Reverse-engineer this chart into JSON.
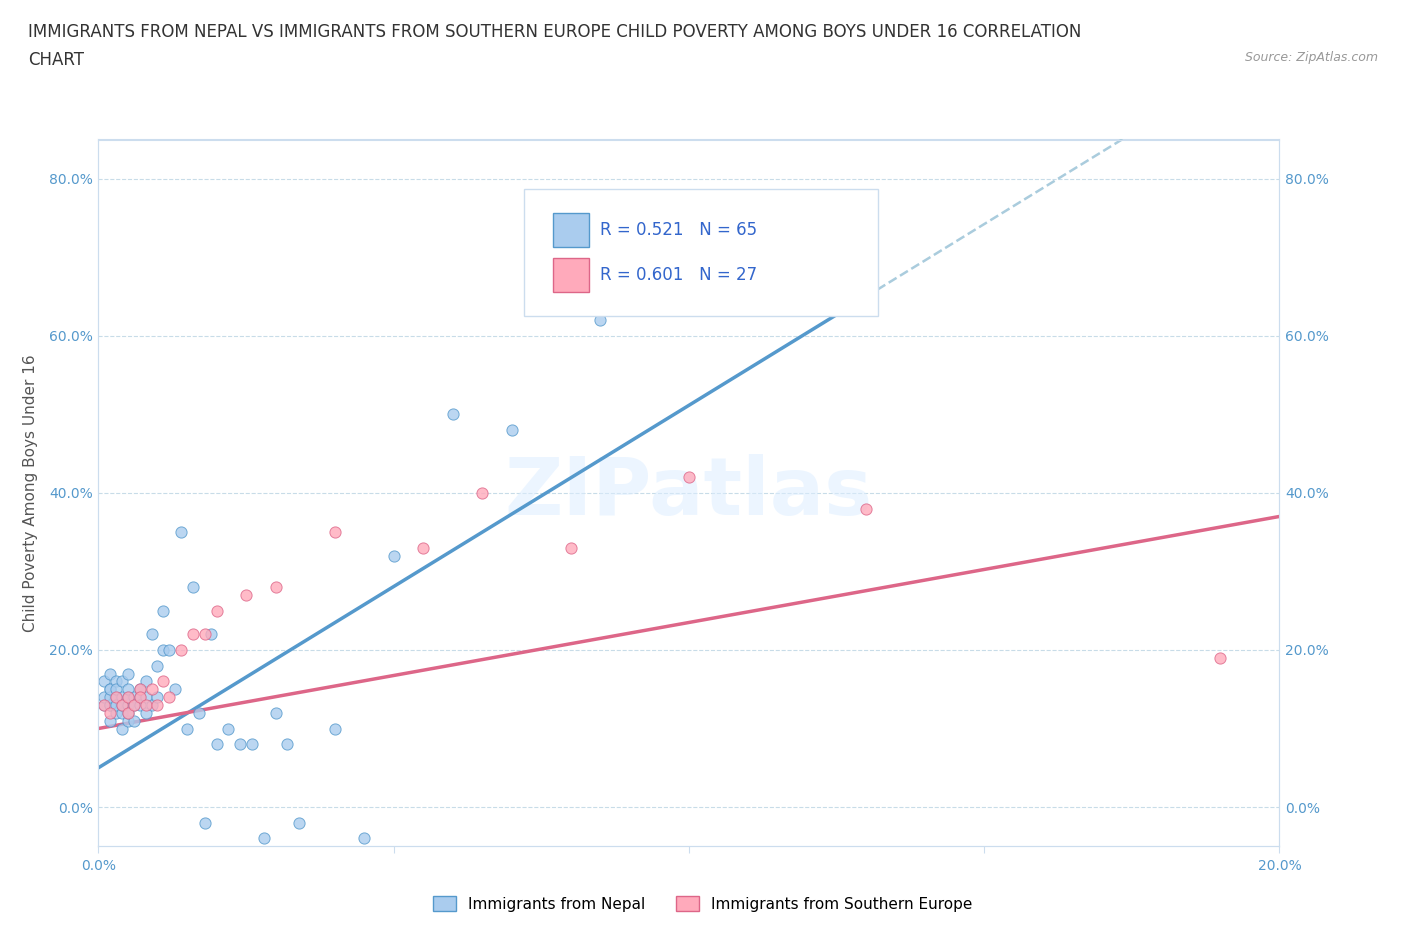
{
  "title_line1": "IMMIGRANTS FROM NEPAL VS IMMIGRANTS FROM SOUTHERN EUROPE CHILD POVERTY AMONG BOYS UNDER 16 CORRELATION",
  "title_line2": "CHART",
  "source_text": "Source: ZipAtlas.com",
  "ylabel": "Child Poverty Among Boys Under 16",
  "xlabel_nepal": "Immigrants from Nepal",
  "xlabel_se": "Immigrants from Southern Europe",
  "xlim": [
    0.0,
    0.2
  ],
  "ylim": [
    -0.05,
    0.85
  ],
  "nepal_color": "#aaccee",
  "nepal_line_color": "#5599cc",
  "se_color": "#ffaabb",
  "se_line_color": "#dd6688",
  "trendline_dashed_color": "#aaccdd",
  "r_nepal": 0.521,
  "n_nepal": 65,
  "r_se": 0.601,
  "n_se": 27,
  "nepal_x": [
    0.001,
    0.001,
    0.001,
    0.002,
    0.002,
    0.002,
    0.002,
    0.002,
    0.002,
    0.002,
    0.003,
    0.003,
    0.003,
    0.003,
    0.003,
    0.004,
    0.004,
    0.004,
    0.004,
    0.004,
    0.005,
    0.005,
    0.005,
    0.005,
    0.005,
    0.005,
    0.006,
    0.006,
    0.006,
    0.007,
    0.007,
    0.007,
    0.008,
    0.008,
    0.008,
    0.009,
    0.009,
    0.01,
    0.01,
    0.011,
    0.011,
    0.012,
    0.013,
    0.014,
    0.015,
    0.016,
    0.017,
    0.018,
    0.019,
    0.02,
    0.022,
    0.024,
    0.026,
    0.028,
    0.03,
    0.032,
    0.034,
    0.04,
    0.045,
    0.05,
    0.06,
    0.07,
    0.085,
    0.1,
    0.125
  ],
  "nepal_y": [
    0.13,
    0.14,
    0.16,
    0.11,
    0.13,
    0.15,
    0.17,
    0.13,
    0.14,
    0.15,
    0.12,
    0.14,
    0.16,
    0.13,
    0.15,
    0.1,
    0.12,
    0.14,
    0.13,
    0.16,
    0.11,
    0.13,
    0.14,
    0.15,
    0.17,
    0.12,
    0.14,
    0.13,
    0.11,
    0.14,
    0.13,
    0.15,
    0.12,
    0.14,
    0.16,
    0.13,
    0.22,
    0.14,
    0.18,
    0.2,
    0.25,
    0.2,
    0.15,
    0.35,
    0.1,
    0.28,
    0.12,
    -0.02,
    0.22,
    0.08,
    0.1,
    0.08,
    0.08,
    -0.04,
    0.12,
    0.08,
    -0.02,
    0.1,
    -0.04,
    0.32,
    0.5,
    0.48,
    0.62,
    0.65,
    0.72
  ],
  "se_x": [
    0.001,
    0.002,
    0.003,
    0.004,
    0.005,
    0.005,
    0.006,
    0.007,
    0.007,
    0.008,
    0.009,
    0.01,
    0.011,
    0.012,
    0.014,
    0.016,
    0.018,
    0.02,
    0.025,
    0.03,
    0.04,
    0.055,
    0.065,
    0.08,
    0.1,
    0.13,
    0.19
  ],
  "se_y": [
    0.13,
    0.12,
    0.14,
    0.13,
    0.12,
    0.14,
    0.13,
    0.15,
    0.14,
    0.13,
    0.15,
    0.13,
    0.16,
    0.14,
    0.2,
    0.22,
    0.22,
    0.25,
    0.27,
    0.28,
    0.35,
    0.33,
    0.4,
    0.33,
    0.42,
    0.38,
    0.19
  ],
  "yticks": [
    0.0,
    0.2,
    0.4,
    0.6,
    0.8
  ],
  "ytick_labels": [
    "0.0%",
    "20.0%",
    "40.0%",
    "60.0%",
    "80.0%"
  ],
  "xticks": [
    0.0,
    0.05,
    0.1,
    0.15,
    0.2
  ],
  "xtick_labels": [
    "0.0%",
    "",
    "",
    "",
    "20.0%"
  ],
  "watermark": "ZIPatlas",
  "legend_r_color": "#3366cc",
  "title_fontsize": 12,
  "label_fontsize": 11,
  "tick_fontsize": 10,
  "nepal_trendline_x0": 0.0,
  "nepal_trendline_y0": 0.05,
  "nepal_trendline_x1": 0.13,
  "nepal_trendline_y1": 0.65,
  "se_trendline_x0": 0.0,
  "se_trendline_y0": 0.1,
  "se_trendline_x1": 0.2,
  "se_trendline_y1": 0.37
}
